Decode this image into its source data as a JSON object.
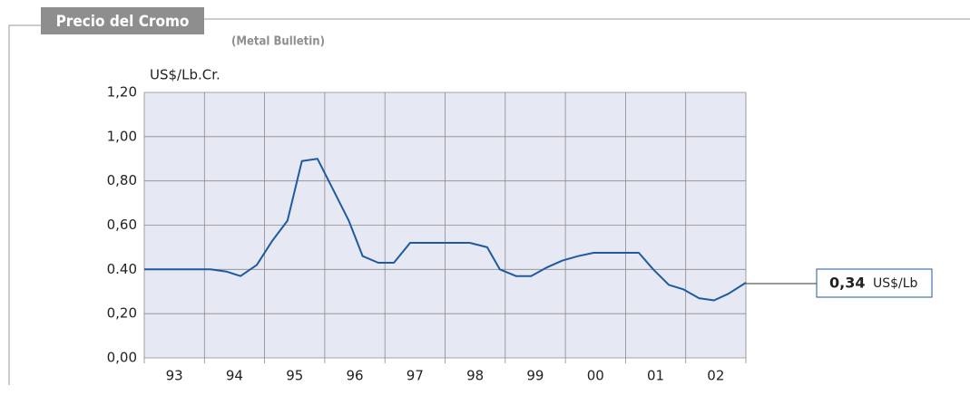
{
  "chart_data": {
    "type": "line",
    "title": "Precio del Cromo",
    "subtitle": "(Metal Bulletin)",
    "y_label": "US$/Lb.Cr.",
    "categories": [
      "93",
      "94",
      "95",
      "96",
      "97",
      "98",
      "99",
      "00",
      "01",
      "02"
    ],
    "xlim": [
      1993,
      2003
    ],
    "ylim": [
      0,
      1.2
    ],
    "yticks": [
      {
        "value": 0,
        "label": "0,00"
      },
      {
        "value": 0.2,
        "label": "0,20"
      },
      {
        "value": 0.4,
        "label": "0.40"
      },
      {
        "value": 0.6,
        "label": "0,60"
      },
      {
        "value": 0.8,
        "label": "0,80"
      },
      {
        "value": 1.0,
        "label": "1,00"
      },
      {
        "value": 1.2,
        "label": "1,20"
      }
    ],
    "grid": true,
    "series": [
      {
        "name": "Precio",
        "color": "#1f5aa0",
        "x": [
          1993.0,
          1994.1,
          1994.37,
          1994.6,
          1994.87,
          1995.13,
          1995.38,
          1995.62,
          1995.88,
          1996.14,
          1996.4,
          1996.63,
          1996.89,
          1997.15,
          1997.42,
          1998.41,
          1998.7,
          1998.91,
          1999.18,
          1999.43,
          1999.7,
          1999.95,
          2000.21,
          2000.47,
          2001.22,
          2001.46,
          2001.72,
          2001.96,
          2002.22,
          2002.47,
          2002.71,
          2003.0
        ],
        "values": [
          0.4,
          0.4,
          0.39,
          0.37,
          0.42,
          0.53,
          0.62,
          0.89,
          0.9,
          0.76,
          0.62,
          0.46,
          0.43,
          0.43,
          0.52,
          0.52,
          0.5,
          0.4,
          0.37,
          0.37,
          0.41,
          0.44,
          0.46,
          0.475,
          0.475,
          0.4,
          0.33,
          0.31,
          0.27,
          0.26,
          0.29,
          0.34
        ]
      }
    ],
    "annotation": {
      "value": 0.34,
      "label": "0,34",
      "unit": "US$/Lb"
    }
  }
}
